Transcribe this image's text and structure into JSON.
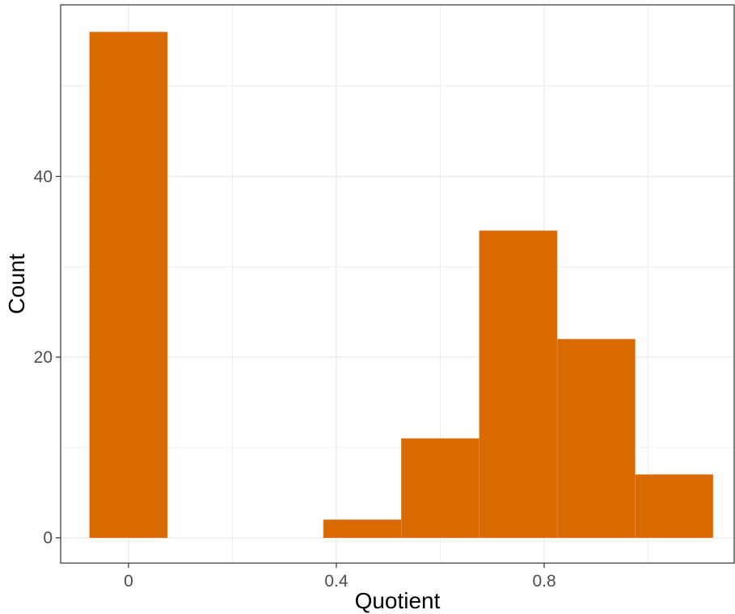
{
  "chart_data": {
    "type": "bar",
    "subtype": "histogram",
    "xlabel": "Quotient",
    "ylabel": "Count",
    "bin_width": 0.15,
    "bins": [
      {
        "x_center": 0.0,
        "count": 56
      },
      {
        "x_center": 0.15,
        "count": 0
      },
      {
        "x_center": 0.3,
        "count": 0
      },
      {
        "x_center": 0.45,
        "count": 2
      },
      {
        "x_center": 0.6,
        "count": 11
      },
      {
        "x_center": 0.75,
        "count": 34
      },
      {
        "x_center": 0.9,
        "count": 22
      },
      {
        "x_center": 1.05,
        "count": 7
      }
    ],
    "x_ticks": [
      {
        "value": 0,
        "label": "0"
      },
      {
        "value": 0.4,
        "label": "0.4"
      },
      {
        "value": 0.8,
        "label": "0.8"
      }
    ],
    "y_ticks": [
      {
        "value": 0,
        "label": "0"
      },
      {
        "value": 20,
        "label": "20"
      },
      {
        "value": 40,
        "label": "40"
      }
    ],
    "x_minor_ticks": [
      0.2,
      0.6,
      1.0
    ],
    "y_minor_ticks": [
      10,
      30,
      50
    ],
    "xlim": [
      -0.1306,
      1.1656
    ],
    "ylim": [
      -2.8,
      59
    ],
    "grid": true,
    "bar_color": "#D96A00",
    "bar_edge_color": "#E8935A",
    "grid_color": "#EBEBEB",
    "panel_border_color": "#333333"
  }
}
